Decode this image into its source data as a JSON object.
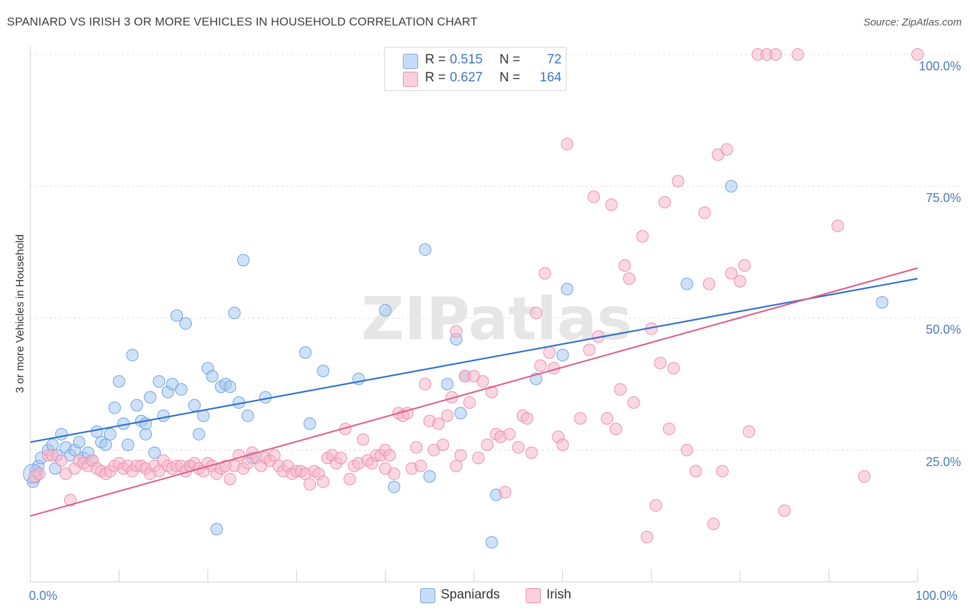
{
  "title": "SPANIARD VS IRISH 3 OR MORE VEHICLES IN HOUSEHOLD CORRELATION CHART",
  "source": "Source: ZipAtlas.com",
  "watermark": "ZIPatlas",
  "legend": {
    "rows": [
      {
        "r_label": "R =",
        "r_value": "0.515",
        "n_label": "N =",
        "n_value": "72",
        "color": "#a8c8f0"
      },
      {
        "r_label": "R =",
        "r_value": "0.627",
        "n_label": "N =",
        "n_value": "164",
        "color": "#f6b8cb"
      }
    ],
    "bottom": [
      {
        "label": "Spaniards",
        "color": "#a8c8f0"
      },
      {
        "label": "Irish",
        "color": "#f6b8cb"
      }
    ]
  },
  "chart_data": {
    "type": "scatter",
    "title": "SPANIARD VS IRISH 3 OR MORE VEHICLES IN HOUSEHOLD CORRELATION CHART",
    "xlabel": "",
    "ylabel": "3 or more Vehicles in Household",
    "xlim": [
      0,
      100
    ],
    "ylim": [
      0,
      100
    ],
    "x_tick_labels": [
      "0.0%",
      "100.0%"
    ],
    "y_tick_labels": [
      "25.0%",
      "50.0%",
      "75.0%",
      "100.0%"
    ],
    "y_ticks": [
      25,
      50,
      75,
      100
    ],
    "grid": "horizontal dashed",
    "legend_placement": "top-center",
    "series": [
      {
        "name": "Spaniards",
        "color": "#6fa2e0",
        "fill": "#a8c8f0",
        "trend": {
          "x": [
            0,
            100
          ],
          "y": [
            26.5,
            57.5
          ],
          "color": "#2f6fd0"
        },
        "points": [
          [
            0.3,
            19
          ],
          [
            0.6,
            21
          ],
          [
            0.9,
            22
          ],
          [
            1.2,
            23.5
          ],
          [
            2,
            25
          ],
          [
            2.5,
            26
          ],
          [
            3,
            24
          ],
          [
            2.8,
            21.5
          ],
          [
            3.5,
            28
          ],
          [
            4,
            25.5
          ],
          [
            4.5,
            24
          ],
          [
            5,
            25
          ],
          [
            5.5,
            26.5
          ],
          [
            6,
            23.5
          ],
          [
            6.5,
            24.5
          ],
          [
            7,
            23
          ],
          [
            7.5,
            28.5
          ],
          [
            8,
            26.5
          ],
          [
            8.5,
            26
          ],
          [
            9,
            28
          ],
          [
            9.5,
            33
          ],
          [
            10,
            38
          ],
          [
            10.5,
            30
          ],
          [
            11,
            26
          ],
          [
            11.5,
            43
          ],
          [
            12,
            33.5
          ],
          [
            12.5,
            30.5
          ],
          [
            13,
            28
          ],
          [
            13,
            30
          ],
          [
            13.5,
            35
          ],
          [
            14,
            24.5
          ],
          [
            14.5,
            38
          ],
          [
            15,
            31.5
          ],
          [
            15.5,
            36
          ],
          [
            16,
            37.5
          ],
          [
            16.5,
            50.5
          ],
          [
            17,
            36.5
          ],
          [
            17.5,
            49
          ],
          [
            18,
            22
          ],
          [
            18.5,
            33.5
          ],
          [
            19,
            28
          ],
          [
            19.5,
            31.5
          ],
          [
            20,
            40.5
          ],
          [
            20.5,
            39
          ],
          [
            21,
            10
          ],
          [
            21.5,
            37
          ],
          [
            22,
            37.5
          ],
          [
            22.5,
            37
          ],
          [
            23,
            51
          ],
          [
            23.5,
            34
          ],
          [
            24,
            61
          ],
          [
            24.5,
            31.5
          ],
          [
            25,
            23.5
          ],
          [
            26.5,
            35
          ],
          [
            31,
            43.5
          ],
          [
            31.5,
            30
          ],
          [
            33,
            40
          ],
          [
            37,
            38.5
          ],
          [
            40,
            51.5
          ],
          [
            41,
            18
          ],
          [
            44.5,
            63
          ],
          [
            45,
            20
          ],
          [
            47,
            37.5
          ],
          [
            48,
            46
          ],
          [
            48.5,
            32
          ],
          [
            49,
            39
          ],
          [
            52,
            7.5
          ],
          [
            52.5,
            16.5
          ],
          [
            57,
            38.5
          ],
          [
            60,
            43
          ],
          [
            60.5,
            55.5
          ],
          [
            74,
            56.5
          ],
          [
            79,
            75
          ],
          [
            96,
            53
          ]
        ]
      },
      {
        "name": "Irish",
        "color": "#ec8fae",
        "fill": "#f6b8cb",
        "trend": {
          "x": [
            0,
            100
          ],
          "y": [
            12.5,
            59.5
          ],
          "color": "#e0608a"
        },
        "points": [
          [
            0.5,
            20
          ],
          [
            1,
            20.5
          ],
          [
            2,
            24
          ],
          [
            2.5,
            24
          ],
          [
            3.5,
            23
          ],
          [
            4,
            20.5
          ],
          [
            4.5,
            15.5
          ],
          [
            5,
            21.5
          ],
          [
            5.5,
            23
          ],
          [
            6,
            22.5
          ],
          [
            6.5,
            22
          ],
          [
            7,
            23
          ],
          [
            7.5,
            21.5
          ],
          [
            8,
            21
          ],
          [
            8.5,
            20.5
          ],
          [
            9,
            21
          ],
          [
            9.5,
            22
          ],
          [
            10,
            22.5
          ],
          [
            10.5,
            21.5
          ],
          [
            11,
            22
          ],
          [
            11.5,
            21
          ],
          [
            12,
            22
          ],
          [
            12.5,
            22
          ],
          [
            13,
            21.5
          ],
          [
            13.5,
            20.5
          ],
          [
            14,
            22
          ],
          [
            14.5,
            21
          ],
          [
            15,
            23
          ],
          [
            15.5,
            22
          ],
          [
            16,
            21.5
          ],
          [
            16.5,
            22
          ],
          [
            17,
            22
          ],
          [
            17.5,
            21
          ],
          [
            18,
            22
          ],
          [
            18.5,
            22.5
          ],
          [
            19,
            21.5
          ],
          [
            19.5,
            21
          ],
          [
            20,
            22.5
          ],
          [
            20.5,
            22
          ],
          [
            21,
            20.5
          ],
          [
            21.5,
            21.5
          ],
          [
            22,
            22
          ],
          [
            22.5,
            19.5
          ],
          [
            23,
            22
          ],
          [
            23.5,
            24
          ],
          [
            24,
            21.5
          ],
          [
            24.5,
            22.5
          ],
          [
            25,
            24.5
          ],
          [
            25.5,
            23.5
          ],
          [
            26,
            22
          ],
          [
            26.5,
            23.5
          ],
          [
            27,
            23
          ],
          [
            27.5,
            24
          ],
          [
            28,
            22
          ],
          [
            28.5,
            21
          ],
          [
            29,
            22
          ],
          [
            29.5,
            20.5
          ],
          [
            30,
            21
          ],
          [
            30.5,
            21
          ],
          [
            31,
            20.5
          ],
          [
            31.5,
            18.5
          ],
          [
            32,
            21
          ],
          [
            32.5,
            20.5
          ],
          [
            33,
            19
          ],
          [
            33.5,
            23.5
          ],
          [
            34,
            24
          ],
          [
            34.5,
            22.5
          ],
          [
            35,
            23.5
          ],
          [
            35.5,
            29
          ],
          [
            36,
            19.5
          ],
          [
            36.5,
            22
          ],
          [
            37,
            22.5
          ],
          [
            37.5,
            27
          ],
          [
            38,
            23
          ],
          [
            38.5,
            22.5
          ],
          [
            39,
            24
          ],
          [
            39.5,
            24
          ],
          [
            40,
            25
          ],
          [
            40.5,
            24
          ],
          [
            41,
            20.5
          ],
          [
            41.5,
            32
          ],
          [
            42,
            31.5
          ],
          [
            42.5,
            32
          ],
          [
            43,
            21.5
          ],
          [
            43.5,
            25.5
          ],
          [
            44,
            22
          ],
          [
            44.5,
            37.5
          ],
          [
            45,
            30.5
          ],
          [
            45.5,
            25
          ],
          [
            46,
            30
          ],
          [
            46.5,
            26
          ],
          [
            47,
            31.5
          ],
          [
            47.5,
            35
          ],
          [
            48,
            22
          ],
          [
            48.5,
            24
          ],
          [
            49,
            39
          ],
          [
            49.5,
            34
          ],
          [
            50,
            39
          ],
          [
            50.5,
            23.5
          ],
          [
            51,
            38
          ],
          [
            51.5,
            26
          ],
          [
            52,
            36
          ],
          [
            52.5,
            28
          ],
          [
            53,
            27.5
          ],
          [
            53.5,
            17
          ],
          [
            54,
            28
          ],
          [
            55,
            25.5
          ],
          [
            55.5,
            31.5
          ],
          [
            56,
            31
          ],
          [
            56.5,
            24.5
          ],
          [
            57,
            51
          ],
          [
            57.5,
            41
          ],
          [
            58,
            58.5
          ],
          [
            58.5,
            43.5
          ],
          [
            59,
            40.5
          ],
          [
            59.5,
            27.5
          ],
          [
            60,
            26
          ],
          [
            60.5,
            83
          ],
          [
            62,
            31
          ],
          [
            63,
            44
          ],
          [
            63.5,
            73
          ],
          [
            64,
            46.5
          ],
          [
            65,
            31
          ],
          [
            65.5,
            71.5
          ],
          [
            66,
            29
          ],
          [
            66.5,
            36.5
          ],
          [
            67,
            60
          ],
          [
            67.5,
            57.5
          ],
          [
            68,
            34
          ],
          [
            69,
            65.5
          ],
          [
            69.5,
            8.5
          ],
          [
            70,
            48
          ],
          [
            70.5,
            14.5
          ],
          [
            71,
            41.5
          ],
          [
            71.5,
            72
          ],
          [
            72,
            29
          ],
          [
            72.5,
            40.5
          ],
          [
            73,
            76
          ],
          [
            74,
            25
          ],
          [
            75,
            21
          ],
          [
            76,
            70
          ],
          [
            76.5,
            56.5
          ],
          [
            77,
            11
          ],
          [
            77.5,
            81
          ],
          [
            78,
            21
          ],
          [
            78.5,
            82
          ],
          [
            79,
            58.5
          ],
          [
            80,
            57
          ],
          [
            80.5,
            60
          ],
          [
            81,
            28.5
          ],
          [
            82,
            100
          ],
          [
            83,
            100
          ],
          [
            84,
            100
          ],
          [
            85,
            13.5
          ],
          [
            86.5,
            100
          ],
          [
            91,
            67.5
          ],
          [
            94,
            20
          ],
          [
            100,
            100
          ],
          [
            40,
            21.5
          ],
          [
            48,
            47.5
          ]
        ]
      }
    ]
  }
}
